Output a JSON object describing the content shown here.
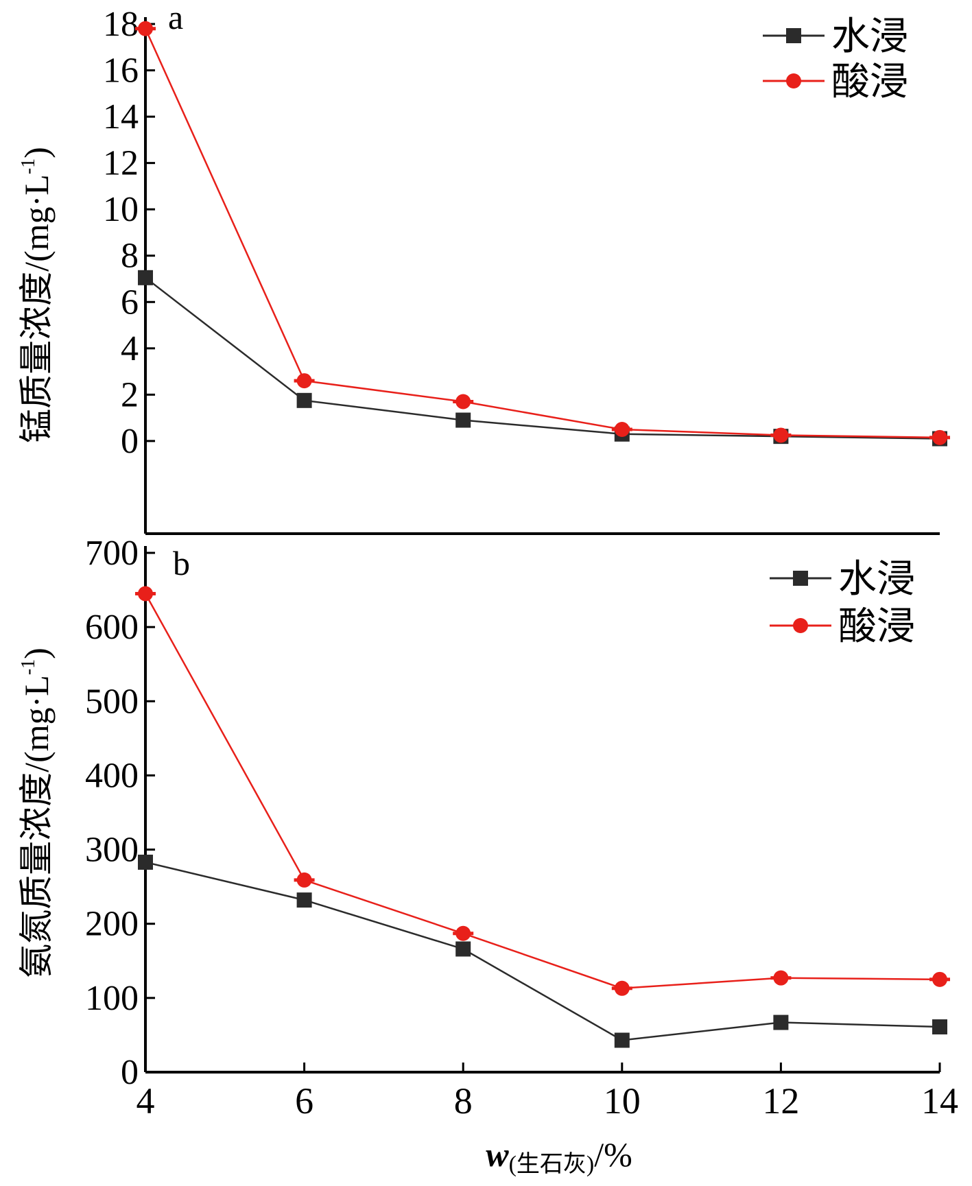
{
  "colors": {
    "water": "#2b2b2b",
    "acid": "#e8201a",
    "axis": "#000000"
  },
  "xlabel": {
    "w": "w",
    "sub": "(生石灰)",
    "unit": "/%"
  },
  "chart_data": [
    {
      "panel": "a",
      "type": "line",
      "ylabel": "锰质量浓度/(mg·L",
      "ylabel_sup": "-1",
      "ylabel_close": ")",
      "x": [
        4,
        6,
        8,
        10,
        12,
        14
      ],
      "xlim": [
        4,
        14
      ],
      "ylim": [
        -4,
        18
      ],
      "yticks": [
        0,
        2,
        4,
        6,
        8,
        10,
        12,
        14,
        16,
        18
      ],
      "legend": "top-right",
      "series": [
        {
          "name": "水浸",
          "key": "water",
          "marker": "square",
          "values": [
            7.05,
            1.75,
            0.9,
            0.3,
            0.2,
            0.1
          ]
        },
        {
          "name": "酸浸",
          "key": "acid",
          "marker": "circle",
          "values": [
            17.8,
            2.6,
            1.7,
            0.5,
            0.25,
            0.15
          ]
        }
      ]
    },
    {
      "panel": "b",
      "type": "line",
      "ylabel": "氨氮质量浓度/(mg·L",
      "ylabel_sup": "-1",
      "ylabel_close": ")",
      "x": [
        4,
        6,
        8,
        10,
        12,
        14
      ],
      "xlim": [
        4,
        14
      ],
      "xticks": [
        4,
        6,
        8,
        10,
        12,
        14
      ],
      "ylim": [
        0,
        700
      ],
      "yticks": [
        0,
        100,
        200,
        300,
        400,
        500,
        600,
        700
      ],
      "legend": "top-right",
      "series": [
        {
          "name": "水浸",
          "key": "water",
          "marker": "square",
          "values": [
            283,
            232,
            166,
            43,
            67,
            61
          ]
        },
        {
          "name": "酸浸",
          "key": "acid",
          "marker": "circle",
          "values": [
            645,
            259,
            187,
            113,
            127,
            125
          ]
        }
      ]
    }
  ]
}
